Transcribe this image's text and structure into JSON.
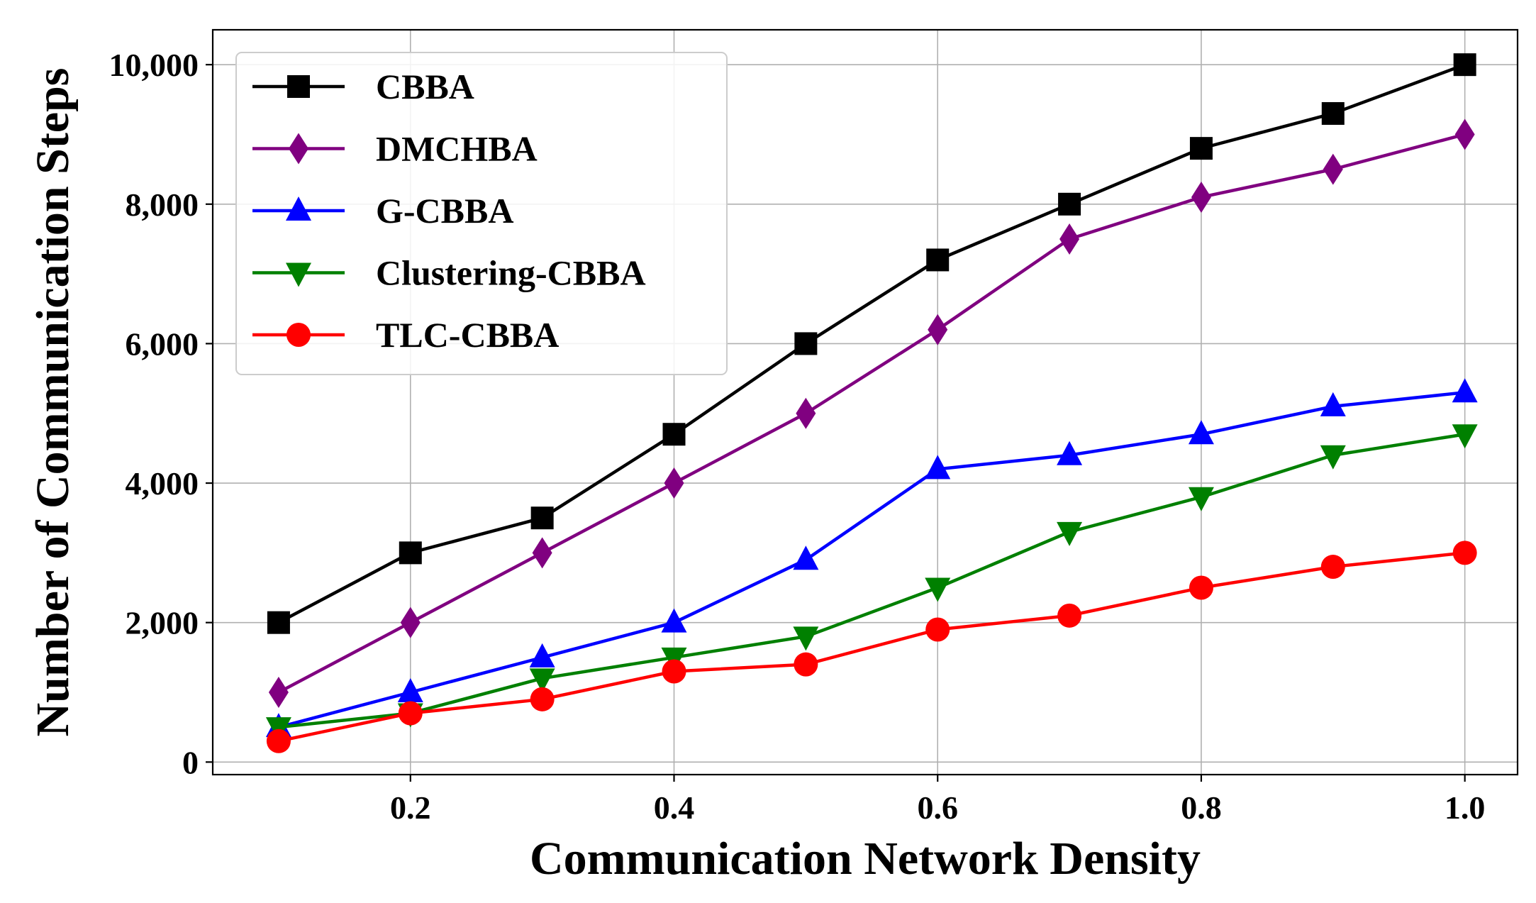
{
  "chart_data": {
    "type": "line",
    "title": "",
    "xlabel": "Communication Network Density",
    "ylabel": "Number of Communication Steps",
    "x": [
      0.1,
      0.2,
      0.3,
      0.4,
      0.5,
      0.6,
      0.7,
      0.8,
      0.9,
      1.0
    ],
    "xlim": [
      0.05,
      1.04
    ],
    "ylim": [
      -180,
      10500
    ],
    "xticks": [
      0.2,
      0.4,
      0.6,
      0.8,
      1.0
    ],
    "xtick_labels": [
      "0.2",
      "0.4",
      "0.6",
      "0.8",
      "1.0"
    ],
    "yticks": [
      0,
      2000,
      4000,
      6000,
      8000,
      10000
    ],
    "ytick_labels": [
      "0",
      "2,000",
      "4,000",
      "6,000",
      "8,000",
      "10,000"
    ],
    "grid": true,
    "legend_position": "top-left",
    "series": [
      {
        "name": "CBBA",
        "color": "#000000",
        "marker": "square",
        "values": [
          2000,
          3000,
          3500,
          4700,
          6000,
          7200,
          8000,
          8800,
          9300,
          10000
        ]
      },
      {
        "name": "DMCHBA",
        "color": "#800080",
        "marker": "diamond",
        "values": [
          1000,
          2000,
          3000,
          4000,
          5000,
          6200,
          7500,
          8100,
          8500,
          9000
        ]
      },
      {
        "name": "G-CBBA",
        "color": "#0000ff",
        "marker": "triangle-up",
        "values": [
          500,
          1000,
          1500,
          2000,
          2900,
          4200,
          4400,
          4700,
          5100,
          5300
        ]
      },
      {
        "name": "Clustering-CBBA",
        "color": "#008000",
        "marker": "triangle-down",
        "values": [
          500,
          700,
          1200,
          1500,
          1800,
          2500,
          3300,
          3800,
          4400,
          4700
        ]
      },
      {
        "name": "TLC-CBBA",
        "color": "#ff0000",
        "marker": "circle",
        "values": [
          300,
          700,
          900,
          1300,
          1400,
          1900,
          2100,
          2500,
          2800,
          3000
        ]
      }
    ]
  }
}
